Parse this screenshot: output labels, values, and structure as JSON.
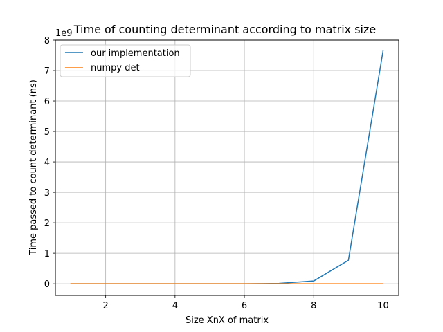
{
  "chart_data": {
    "type": "line",
    "title": "Time of counting determinant according to matrix size",
    "xlabel": "Size XnX of matrix",
    "ylabel": "Time passed to count determinant (ns)",
    "y_scale_note": "1e9",
    "xlim": [
      0.55,
      10.45
    ],
    "ylim": [
      -0.383,
      8.0
    ],
    "x_ticks": [
      2,
      4,
      6,
      8,
      10
    ],
    "x_tick_labels": [
      "2",
      "4",
      "6",
      "8",
      "10"
    ],
    "y_ticks": [
      0,
      1,
      2,
      3,
      4,
      5,
      6,
      7,
      8
    ],
    "y_tick_labels": [
      "0",
      "1",
      "2",
      "3",
      "4",
      "5",
      "6",
      "7",
      "8"
    ],
    "grid": true,
    "legend_position": "top-left",
    "x": [
      1,
      2,
      3,
      4,
      5,
      6,
      7,
      8,
      9,
      10
    ],
    "series": [
      {
        "name": "our implementation",
        "color": "#1f77b4",
        "values": [
          0.0,
          0.0,
          0.0,
          0.0,
          0.0,
          0.0,
          0.011,
          0.09,
          0.77,
          7.65
        ]
      },
      {
        "name": "numpy det",
        "color": "#ff7f0e",
        "values": [
          0.0,
          0.0,
          0.0,
          0.0,
          0.0,
          0.0,
          0.0,
          0.0,
          0.0,
          0.0
        ]
      }
    ]
  }
}
